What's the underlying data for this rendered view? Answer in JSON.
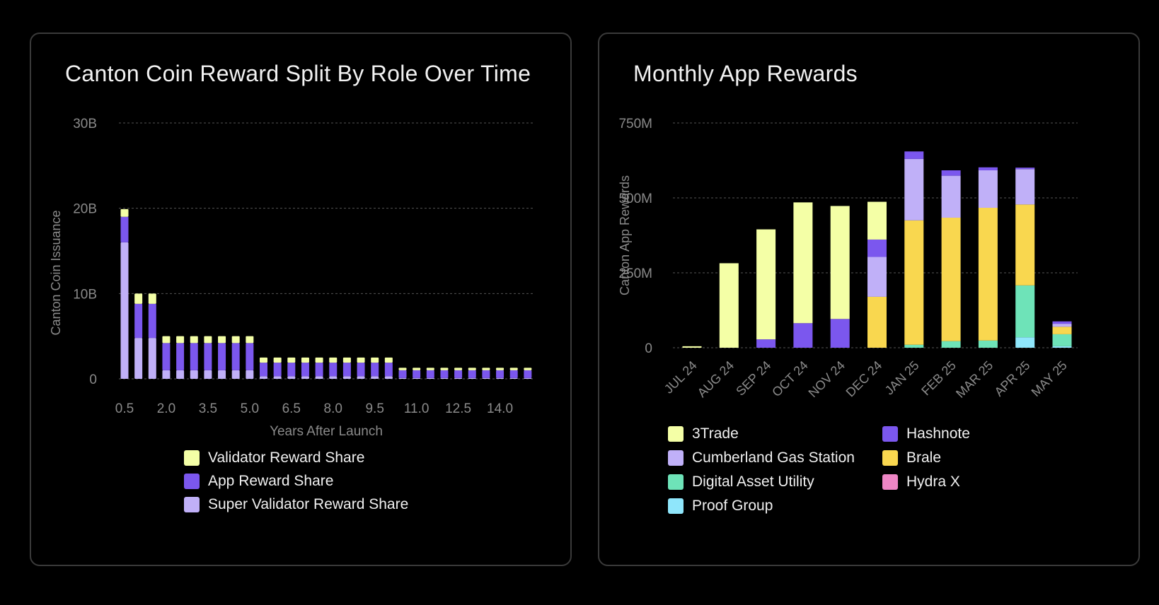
{
  "chart_data": [
    {
      "type": "bar",
      "stacked": true,
      "title": "Canton Coin Reward Split By Role Over Time",
      "xlabel": "Years After Launch",
      "ylabel": "Canton Coin Issuance",
      "ylim": [
        0,
        30000000000
      ],
      "y_ticks": [
        0,
        10000000000,
        20000000000,
        30000000000
      ],
      "y_tick_labels": [
        "0",
        "10B",
        "20B",
        "30B"
      ],
      "x": [
        0.5,
        1.0,
        1.5,
        2.0,
        2.5,
        3.0,
        3.5,
        4.0,
        4.5,
        5.0,
        5.5,
        6.0,
        6.5,
        7.0,
        7.5,
        8.0,
        8.5,
        9.0,
        9.5,
        10.0,
        10.5,
        11.0,
        11.5,
        12.0,
        12.5,
        13.0,
        13.5,
        14.0,
        14.5,
        15.0
      ],
      "x_tick_labels": [
        "0.5",
        "2.0",
        "3.5",
        "5.0",
        "6.5",
        "8.0",
        "9.5",
        "11.0",
        "12.5",
        "14.0"
      ],
      "grid": true,
      "legend_position": "bottom",
      "series": [
        {
          "name": "Super Validator Reward Share",
          "color": "#c0b0f8",
          "values": [
            16000000000,
            4800000000,
            4800000000,
            1000000000,
            1000000000,
            1000000000,
            1000000000,
            1000000000,
            1000000000,
            1000000000,
            300000000,
            300000000,
            300000000,
            300000000,
            300000000,
            300000000,
            300000000,
            300000000,
            300000000,
            300000000,
            100000000,
            100000000,
            100000000,
            100000000,
            100000000,
            100000000,
            100000000,
            100000000,
            100000000,
            100000000
          ]
        },
        {
          "name": "App Reward Share",
          "color": "#7b57ee",
          "values": [
            3000000000,
            4000000000,
            4000000000,
            3200000000,
            3200000000,
            3200000000,
            3200000000,
            3200000000,
            3200000000,
            3200000000,
            1600000000,
            1600000000,
            1600000000,
            1600000000,
            1600000000,
            1600000000,
            1600000000,
            1600000000,
            1600000000,
            1600000000,
            900000000,
            900000000,
            900000000,
            900000000,
            900000000,
            900000000,
            900000000,
            900000000,
            900000000,
            900000000
          ]
        },
        {
          "name": "Validator Reward Share",
          "color": "#f4ffa6",
          "values": [
            900000000,
            1200000000,
            1200000000,
            800000000,
            800000000,
            800000000,
            800000000,
            800000000,
            800000000,
            800000000,
            600000000,
            600000000,
            600000000,
            600000000,
            600000000,
            600000000,
            600000000,
            600000000,
            600000000,
            600000000,
            300000000,
            300000000,
            300000000,
            300000000,
            300000000,
            300000000,
            300000000,
            300000000,
            300000000,
            300000000
          ]
        }
      ],
      "legend": [
        {
          "name": "Validator Reward Share",
          "color": "#f4ffa6"
        },
        {
          "name": "App Reward Share",
          "color": "#7b57ee"
        },
        {
          "name": "Super Validator Reward Share",
          "color": "#c0b0f8"
        }
      ]
    },
    {
      "type": "bar",
      "stacked": true,
      "title": "Monthly App Rewards",
      "xlabel": "",
      "ylabel": "Canton App Rewards",
      "ylim": [
        0,
        750000000
      ],
      "y_ticks": [
        0,
        250000000,
        500000000,
        750000000
      ],
      "y_tick_labels": [
        "0",
        "250M",
        "500M",
        "750M"
      ],
      "categories": [
        "JUL 24",
        "AUG 24",
        "SEP 24",
        "OCT 24",
        "NOV 24",
        "DEC 24",
        "JAN 25",
        "FEB 25",
        "MAR 25",
        "APR 25",
        "MAY 25"
      ],
      "grid": true,
      "legend_position": "bottom",
      "series": [
        {
          "name": "Proof Group",
          "color": "#8fe6fb",
          "values": [
            0,
            0,
            0,
            0,
            0,
            0,
            0,
            0,
            0,
            35000000,
            5000000
          ]
        },
        {
          "name": "Digital Asset Utility",
          "color": "#6ee3b8",
          "values": [
            0,
            0,
            0,
            0,
            0,
            0,
            10000000,
            22000000,
            24000000,
            173000000,
            40000000
          ]
        },
        {
          "name": "Hydra X",
          "color": "#ee86c5",
          "values": [
            0,
            0,
            0,
            0,
            0,
            0,
            0,
            0,
            0,
            0,
            0
          ]
        },
        {
          "name": "Brale",
          "color": "#f9d74f",
          "values": [
            0,
            0,
            0,
            0,
            0,
            170000000,
            415000000,
            412000000,
            443000000,
            270000000,
            25000000
          ]
        },
        {
          "name": "Cumberland Gas Station",
          "color": "#c0b0f8",
          "values": [
            0,
            0,
            0,
            0,
            0,
            133000000,
            205000000,
            140000000,
            125000000,
            118000000,
            10000000
          ]
        },
        {
          "name": "Hashnote",
          "color": "#7b57ee",
          "values": [
            0,
            0,
            28000000,
            82000000,
            96000000,
            58000000,
            25000000,
            18000000,
            10000000,
            5000000,
            8000000
          ]
        },
        {
          "name": "3Trade",
          "color": "#f4ffa6",
          "values": [
            5000000,
            282000000,
            367000000,
            403000000,
            377000000,
            126000000,
            0,
            0,
            0,
            0,
            0
          ]
        }
      ],
      "legend": [
        {
          "name": "3Trade",
          "color": "#f4ffa6"
        },
        {
          "name": "Hashnote",
          "color": "#7b57ee"
        },
        {
          "name": "Cumberland Gas Station",
          "color": "#c0b0f8"
        },
        {
          "name": "Brale",
          "color": "#f9d74f"
        },
        {
          "name": "Digital Asset Utility",
          "color": "#6ee3b8"
        },
        {
          "name": "Hydra X",
          "color": "#ee86c5"
        },
        {
          "name": "Proof Group",
          "color": "#8fe6fb"
        }
      ]
    }
  ]
}
